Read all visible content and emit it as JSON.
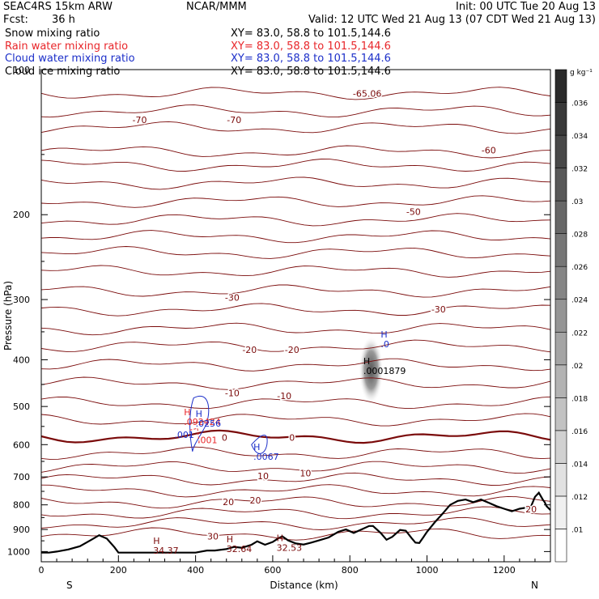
{
  "header": {
    "model": "SEAC4RS 15km ARW",
    "center": "NCAR/MMM",
    "init": "Init: 00 UTC Tue 20 Aug 13",
    "fcst_label": "Fcst:",
    "fcst_value": "36 h",
    "valid": "Valid: 12 UTC Wed 21 Aug 13 (07 CDT Wed 21 Aug 13)"
  },
  "fields": [
    {
      "name": "Snow mixing ratio",
      "xy": "XY=  83.0, 58.8 to 101.5,144.6",
      "color": "#000000"
    },
    {
      "name": "Rain water mixing ratio",
      "xy": "XY=  83.0, 58.8 to 101.5,144.6",
      "color": "#e8262a"
    },
    {
      "name": "Cloud water mixing ratio",
      "xy": "XY=  83.0, 58.8 to 101.5,144.6",
      "color": "#1c2fc9"
    },
    {
      "name": "Cloud ice mixing ratio",
      "xy": "XY=  83.0, 58.8 to 101.5,144.6",
      "color": "#000000"
    }
  ],
  "chart_data": {
    "type": "cross-section",
    "xlabel": "Distance (km)",
    "ylabel": "Pressure (hPa)",
    "xlim": [
      0,
      1320
    ],
    "ylim": [
      1050,
      100
    ],
    "x_ticks": [
      0,
      200,
      400,
      600,
      800,
      1000,
      1200
    ],
    "y_ticks": [
      1000,
      900,
      800,
      700,
      600,
      500,
      400,
      300,
      200,
      100
    ],
    "left_end": "S",
    "right_end": "N",
    "colorbar": {
      "unit": "g kg⁻¹",
      "ticks": [
        ".01",
        ".012",
        ".014",
        ".016",
        ".018",
        ".02",
        ".022",
        ".024",
        ".026",
        ".028",
        ".03",
        ".032",
        ".034",
        ".036"
      ],
      "color_low": "#ffffff",
      "color_high": "#2a2a2a"
    },
    "temperature_contours": {
      "color": "#7a0a0a",
      "levels": [
        -70,
        -60,
        -50,
        -40,
        -30,
        -20,
        -10,
        0,
        10,
        20,
        30
      ],
      "labels": [
        {
          "text": "-70",
          "x": 255,
          "p": 127
        },
        {
          "text": "-70",
          "x": 500,
          "p": 127
        },
        {
          "text": "-60",
          "x": 1160,
          "p": 147
        },
        {
          "text": "-50",
          "x": 965,
          "p": 197
        },
        {
          "text": "-30",
          "x": 495,
          "p": 297
        },
        {
          "text": "-30",
          "x": 1030,
          "p": 314
        },
        {
          "text": "-20",
          "x": 540,
          "p": 381
        },
        {
          "text": "-20",
          "x": 650,
          "p": 381
        },
        {
          "text": "-10",
          "x": 495,
          "p": 469
        },
        {
          "text": "-10",
          "x": 630,
          "p": 475
        },
        {
          "text": "0",
          "x": 475,
          "p": 580
        },
        {
          "text": "0",
          "x": 650,
          "p": 580
        },
        {
          "text": "10",
          "x": 575,
          "p": 697
        },
        {
          "text": "10",
          "x": 685,
          "p": 687
        },
        {
          "text": "20",
          "x": 485,
          "p": 789
        },
        {
          "text": "20",
          "x": 555,
          "p": 782
        },
        {
          "text": "20",
          "x": 1270,
          "p": 817
        },
        {
          "text": "30",
          "x": 445,
          "p": 930
        },
        {
          "text": "-65.06",
          "x": 845,
          "p": 112
        }
      ]
    },
    "extrema": [
      {
        "marker": "H",
        "value": ".0",
        "x": 880,
        "p": 368,
        "color": "#1c2fc9"
      },
      {
        "marker": "H",
        "value": ".0001879",
        "x": 835,
        "p": 418,
        "color": "#000000"
      },
      {
        "marker": "H",
        "value": ".092424",
        "x": 370,
        "p": 534,
        "color": "#e8262a"
      },
      {
        "marker": "H",
        "value": ".0256",
        "x": 400,
        "p": 538,
        "color": "#1c2fc9"
      },
      {
        "marker": "",
        "value": ".001",
        "x": 345,
        "p": 568,
        "color": "#1c2fc9"
      },
      {
        "marker": "",
        "value": ".001",
        "x": 405,
        "p": 582,
        "color": "#e8262a"
      },
      {
        "marker": "H",
        "value": ".0067",
        "x": 550,
        "p": 630,
        "color": "#1c2fc9"
      },
      {
        "marker": "H",
        "value": "34.37",
        "x": 290,
        "p": 987,
        "color": "#7a0a0a"
      },
      {
        "marker": "H",
        "value": "32.64",
        "x": 480,
        "p": 980,
        "color": "#7a0a0a"
      },
      {
        "marker": "H",
        "value": "32.53",
        "x": 610,
        "p": 973,
        "color": "#7a0a0a"
      }
    ],
    "terrain": {
      "color": "#000000",
      "distance": [
        0,
        20,
        40,
        70,
        100,
        130,
        150,
        170,
        190,
        200,
        250,
        300,
        350,
        400,
        430,
        450,
        480,
        500,
        520,
        545,
        560,
        580,
        600,
        615,
        625,
        640,
        660,
        680,
        700,
        720,
        745,
        770,
        790,
        810,
        830,
        850,
        860,
        880,
        895,
        910,
        930,
        945,
        960,
        970,
        980,
        990,
        1000,
        1020,
        1040,
        1060,
        1080,
        1100,
        1120,
        1140,
        1160,
        1180,
        1200,
        1220,
        1240,
        1260,
        1270,
        1280,
        1290,
        1300,
        1305,
        1310,
        1320
      ],
      "pressure": [
        1005,
        1005,
        1000,
        990,
        975,
        945,
        925,
        940,
        980,
        1005,
        1005,
        1005,
        1005,
        1005,
        995,
        995,
        988,
        978,
        982,
        968,
        952,
        968,
        955,
        938,
        930,
        948,
        962,
        967,
        958,
        948,
        935,
        910,
        900,
        915,
        900,
        885,
        885,
        915,
        945,
        932,
        902,
        905,
        938,
        958,
        960,
        935,
        910,
        870,
        835,
        800,
        785,
        780,
        790,
        780,
        792,
        805,
        815,
        825,
        815,
        810,
        805,
        770,
        755,
        780,
        790,
        805,
        820
      ]
    }
  }
}
